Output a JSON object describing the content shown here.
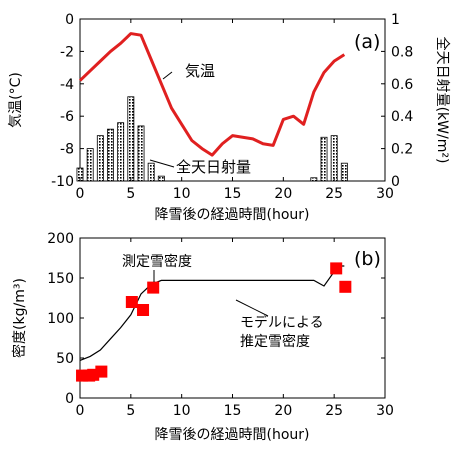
{
  "chart_data": [
    {
      "panel": "(a)",
      "type": "bar+line",
      "xlabel": "降雪後の経過時間(hour)",
      "xlim": [
        0,
        30
      ],
      "xticks": [
        "0",
        "5",
        "10",
        "15",
        "20",
        "25",
        "30"
      ],
      "ylabel_left": "気温(°C)",
      "ylim_left": [
        -10,
        0
      ],
      "yticks_left": [
        "-10",
        "-8",
        "-6",
        "-4",
        "-2",
        "0"
      ],
      "ylabel_right": "全天日射量(kW/m²)",
      "ylim_right": [
        0,
        1
      ],
      "yticks_right": [
        "0",
        "0.2",
        "0.4",
        "0.6",
        "0.8",
        "1"
      ],
      "series": [
        {
          "name": "気温",
          "axis": "left",
          "color": "#e02020",
          "x": [
            0,
            1,
            2,
            3,
            4,
            5,
            6,
            7,
            8,
            9,
            10,
            11,
            12,
            13,
            14,
            15,
            16,
            17,
            18,
            19,
            20,
            21,
            22,
            23,
            24,
            25,
            26
          ],
          "y": [
            -3.8,
            -3.2,
            -2.6,
            -2.0,
            -1.5,
            -0.9,
            -1.0,
            -2.5,
            -4.0,
            -5.5,
            -6.5,
            -7.5,
            -8.0,
            -8.4,
            -7.7,
            -7.2,
            -7.3,
            -7.4,
            -7.7,
            -7.8,
            -6.2,
            -6.0,
            -6.5,
            -4.5,
            -3.3,
            -2.6,
            -2.2
          ]
        },
        {
          "name": "全天日射量",
          "axis": "right",
          "pattern": "dotted",
          "x": [
            0,
            1,
            2,
            3,
            4,
            5,
            6,
            7,
            8,
            9,
            10,
            11,
            12,
            13,
            14,
            15,
            16,
            17,
            18,
            19,
            20,
            21,
            22,
            23,
            24,
            25,
            26
          ],
          "y": [
            0.08,
            0.2,
            0.28,
            0.32,
            0.36,
            0.52,
            0.34,
            0.11,
            0.03,
            0.0,
            0.0,
            0.0,
            0.0,
            0.0,
            0.0,
            0.0,
            0.0,
            0.0,
            0.0,
            0.0,
            0.0,
            0.0,
            0.0,
            0.02,
            0.27,
            0.28,
            0.11
          ]
        }
      ],
      "annotations": [
        "(a)",
        "気温",
        "全天日射量"
      ]
    },
    {
      "panel": "(b)",
      "type": "scatter+line",
      "xlabel": "降雪後の経過時間(hour)",
      "xlim": [
        0,
        30
      ],
      "xticks": [
        "0",
        "5",
        "10",
        "15",
        "20",
        "25",
        "30"
      ],
      "ylabel": "密度(kg/m³)",
      "ylim": [
        0,
        200
      ],
      "yticks": [
        "0",
        "50",
        "100",
        "150",
        "200"
      ],
      "series": [
        {
          "name": "測定雪密度",
          "marker": "square",
          "color": "#ff0000",
          "x": [
            0.2,
            0.9,
            1.3,
            2.1,
            5.1,
            6.2,
            7.2,
            25.2,
            26.1
          ],
          "y": [
            28,
            28,
            29,
            33,
            120,
            110,
            138,
            162,
            139
          ]
        },
        {
          "name": "モデルによる推定雪密度",
          "color": "#000000",
          "x": [
            0,
            1,
            2,
            3,
            4,
            5,
            6,
            7,
            8,
            9,
            10,
            15,
            20,
            23,
            24,
            25,
            25.5,
            26
          ],
          "y": [
            47,
            52,
            60,
            74,
            88,
            104,
            130,
            142,
            147,
            147,
            147,
            147,
            147,
            147,
            140,
            158,
            165,
            165
          ]
        }
      ],
      "annotations": [
        "(b)",
        "測定雪密度",
        "モデルによる",
        "推定雪密度"
      ]
    }
  ]
}
